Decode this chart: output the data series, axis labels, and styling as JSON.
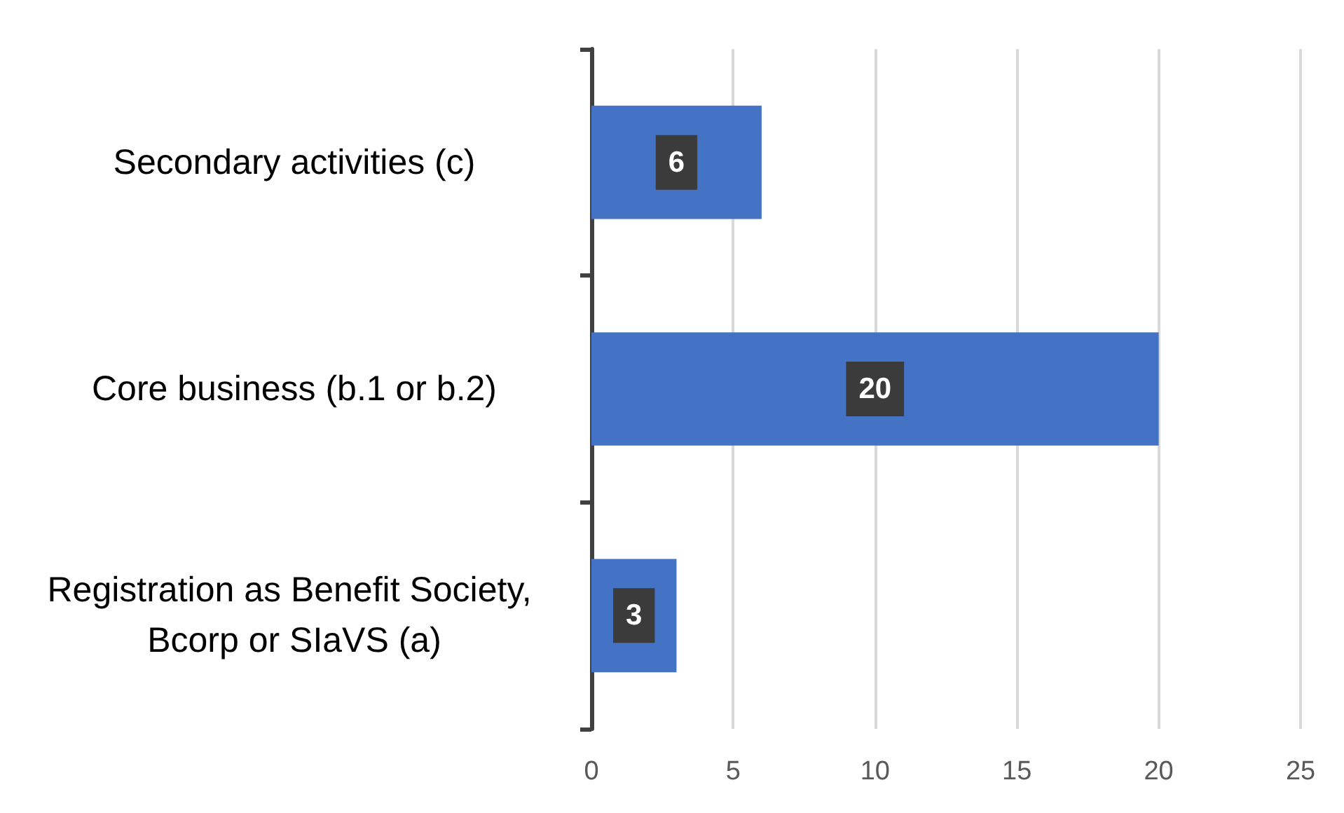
{
  "chart_data": {
    "type": "bar",
    "orientation": "horizontal",
    "categories": [
      "Secondary activities (c)",
      "Core business (b.1 or b.2)",
      "Registration as Benefit Society, Bcorp or SIaVS (a)"
    ],
    "values": [
      6,
      20,
      3
    ],
    "color": "#4472c4",
    "xlim": [
      0,
      25
    ],
    "xticks": [
      0,
      5,
      10,
      15,
      20,
      25
    ],
    "grid": "x",
    "data_labels": true
  }
}
